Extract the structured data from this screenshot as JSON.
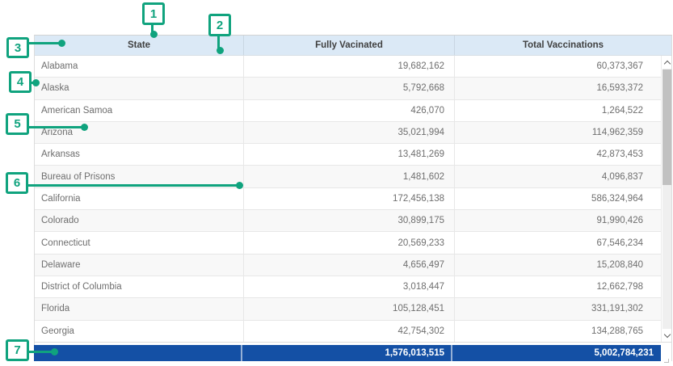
{
  "table": {
    "columns": [
      {
        "label": "State"
      },
      {
        "label": "Fully Vacinated"
      },
      {
        "label": "Total Vaccinations"
      }
    ],
    "rows": [
      {
        "state": "Alabama",
        "fully_vaccinated": "19,682,162",
        "total_vaccinations": "60,373,367"
      },
      {
        "state": "Alaska",
        "fully_vaccinated": "5,792,668",
        "total_vaccinations": "16,593,372"
      },
      {
        "state": "American Samoa",
        "fully_vaccinated": "426,070",
        "total_vaccinations": "1,264,522"
      },
      {
        "state": "Arizona",
        "fully_vaccinated": "35,021,994",
        "total_vaccinations": "114,962,359"
      },
      {
        "state": "Arkansas",
        "fully_vaccinated": "13,481,269",
        "total_vaccinations": "42,873,453"
      },
      {
        "state": "Bureau of Prisons",
        "fully_vaccinated": "1,481,602",
        "total_vaccinations": "4,096,837"
      },
      {
        "state": "California",
        "fully_vaccinated": "172,456,138",
        "total_vaccinations": "586,324,964"
      },
      {
        "state": "Colorado",
        "fully_vaccinated": "30,899,175",
        "total_vaccinations": "91,990,426"
      },
      {
        "state": "Connecticut",
        "fully_vaccinated": "20,569,233",
        "total_vaccinations": "67,546,234"
      },
      {
        "state": "Delaware",
        "fully_vaccinated": "4,656,497",
        "total_vaccinations": "15,208,840"
      },
      {
        "state": "District of Columbia",
        "fully_vaccinated": "3,018,447",
        "total_vaccinations": "12,662,798"
      },
      {
        "state": "Florida",
        "fully_vaccinated": "105,128,451",
        "total_vaccinations": "331,191,302"
      },
      {
        "state": "Georgia",
        "fully_vaccinated": "42,754,302",
        "total_vaccinations": "134,288,765"
      }
    ],
    "summary": {
      "state": "",
      "fully_vaccinated": "1,576,013,515",
      "total_vaccinations": "5,002,784,231"
    }
  },
  "annotations": {
    "markers": [
      {
        "label": "1"
      },
      {
        "label": "2"
      },
      {
        "label": "3"
      },
      {
        "label": "4"
      },
      {
        "label": "5"
      },
      {
        "label": "6"
      },
      {
        "label": "7"
      }
    ]
  },
  "scrollbar": {
    "up_icon": "chevron-up",
    "down_icon": "chevron-down"
  },
  "colors": {
    "header_bg": "#dbe9f6",
    "summary_bg": "#1450a5",
    "annotation_accent": "#10a37e",
    "row_alt_bg": "#f8f8f8",
    "body_text": "#6e6e6e"
  }
}
